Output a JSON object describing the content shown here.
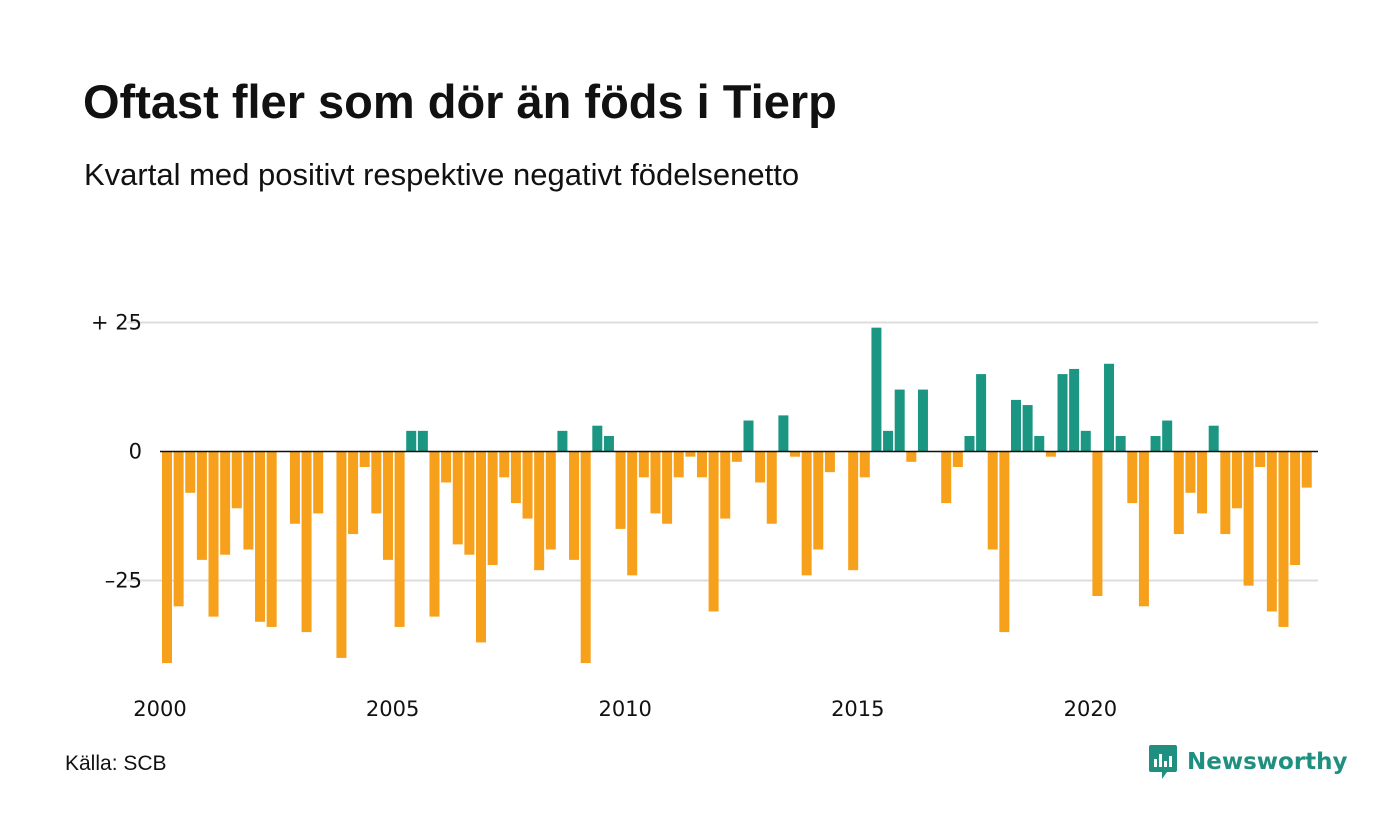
{
  "header": {
    "title": "Oftast fler som dör än föds i Tierp",
    "subtitle": "Kvartal med positivt respektive negativt födelsenetto"
  },
  "footer": {
    "source": "Källa: SCB",
    "brand": "Newsworthy"
  },
  "colors": {
    "positive": "#1a9682",
    "negative": "#f6a01b",
    "grid": "#dddddd",
    "zero_line": "#111111"
  },
  "chart_data": {
    "type": "bar",
    "title": "Oftast fler som dör än föds i Tierp",
    "subtitle": "Kvartal med positivt respektive negativt födelsenetto",
    "xlabel": "",
    "ylabel": "",
    "x_start": 2000,
    "periods_per_year": 4,
    "x_tick_labels": [
      "2000",
      "2005",
      "2010",
      "2015",
      "2020"
    ],
    "x_tick_years": [
      2000,
      2005,
      2010,
      2015,
      2020
    ],
    "y_ticks": [
      25,
      0,
      -25
    ],
    "y_tick_labels": [
      "+ 25",
      "0",
      "–25"
    ],
    "ylim": [
      -45,
      27
    ],
    "grid": true,
    "legend": "none",
    "values": [
      -41,
      -30,
      -8,
      -21,
      -32,
      -20,
      -11,
      -19,
      -33,
      -34,
      0,
      -14,
      -35,
      -12,
      0,
      -40,
      -16,
      -3,
      -12,
      -21,
      -34,
      4,
      4,
      -32,
      -6,
      -18,
      -20,
      -37,
      -22,
      -5,
      -10,
      -13,
      -23,
      -19,
      4,
      -21,
      -41,
      5,
      3,
      -15,
      -24,
      -5,
      -12,
      -14,
      -5,
      -1,
      -5,
      -31,
      -13,
      -2,
      6,
      -6,
      -14,
      7,
      -1,
      -24,
      -19,
      -4,
      0,
      -23,
      -5,
      24,
      4,
      12,
      -2,
      12,
      0,
      -10,
      -3,
      3,
      15,
      -19,
      -35,
      10,
      9,
      3,
      -1,
      15,
      16,
      4,
      -28,
      17,
      3,
      -10,
      -30,
      3,
      6,
      -16,
      -8,
      -12,
      5,
      -16,
      -11,
      -26,
      -3,
      -31,
      -34,
      -22,
      -7
    ]
  }
}
